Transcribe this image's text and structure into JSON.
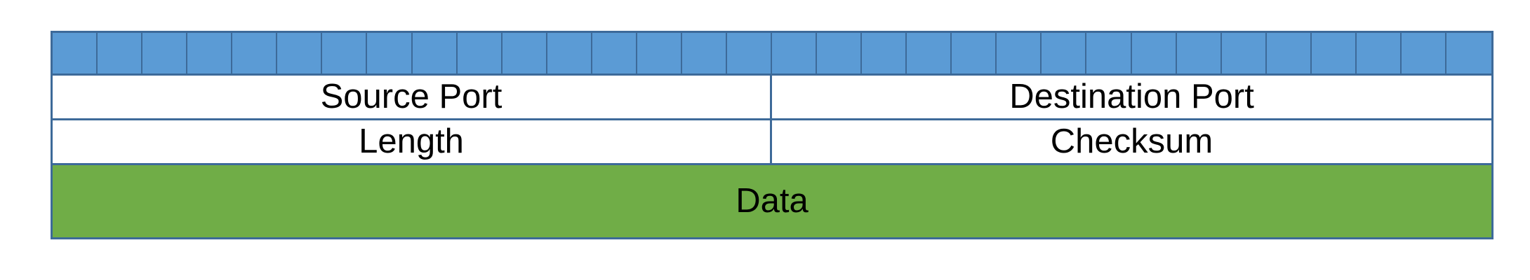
{
  "diagram": {
    "bit_count": 32,
    "fields": {
      "source_port": "Source Port",
      "destination_port": "Destination Port",
      "length": "Length",
      "checksum": "Checksum",
      "data": "Data"
    },
    "colors": {
      "bit_fill": "#5b9bd5",
      "border": "#3d6a99",
      "field_fill": "#ffffff",
      "data_fill": "#70ad47",
      "text": "#000000"
    }
  }
}
